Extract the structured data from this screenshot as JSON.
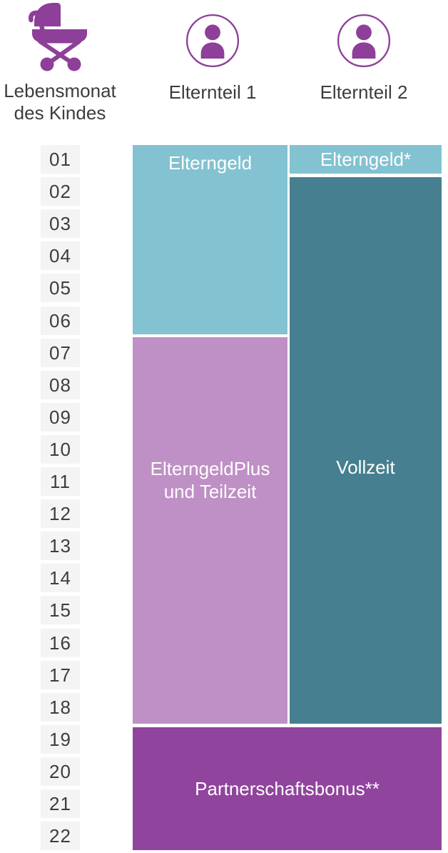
{
  "header": {
    "months_label_line1": "Lebensmonat",
    "months_label_line2": "des Kindes",
    "parent1_label": "Elternteil 1",
    "parent2_label": "Elternteil 2"
  },
  "icons": {
    "axis_icon": "baby-carriage-icon",
    "parent_icon": "person-icon"
  },
  "months": [
    "01",
    "02",
    "03",
    "04",
    "05",
    "06",
    "07",
    "08",
    "09",
    "10",
    "11",
    "12",
    "13",
    "14",
    "15",
    "16",
    "17",
    "18",
    "19",
    "20",
    "21",
    "22"
  ],
  "blocks": [
    {
      "id": "elterngeld-parent1",
      "label": "Elterngeld",
      "color_key": "light_teal"
    },
    {
      "id": "elterngeld-parent2",
      "label": "Elterngeld*",
      "color_key": "light_teal"
    },
    {
      "id": "vollzeit-parent2",
      "label": "Vollzeit",
      "color_key": "dark_teal"
    },
    {
      "id": "elterngeldplus-parent1",
      "label": "ElterngeldPlus und Teilzeit",
      "label_lines": [
        "ElterngeldPlus",
        "und Teilzeit"
      ],
      "color_key": "mauve"
    },
    {
      "id": "partnerschaftsbonus-both",
      "label": "Partnerschaftsbonus**",
      "color_key": "purple"
    }
  ],
  "colors": {
    "icon_purple": "#8e3f99",
    "light_teal": "#82c2d1",
    "dark_teal": "#467f8f",
    "mauve": "#bf90c5",
    "purple": "#90449d",
    "month_cell_bg": "#f4f4f4",
    "text_dark": "#3d3d3d",
    "block_text": "#ffffff"
  },
  "chart_data": {
    "type": "table",
    "title": "",
    "x_axis_label": "Lebensmonat des Kindes",
    "x_range": [
      1,
      22
    ],
    "columns": [
      "Elternteil 1",
      "Elternteil 2"
    ],
    "spans": [
      {
        "column": "Elternteil 1",
        "label": "Elterngeld",
        "start_month": 1,
        "end_month": 6
      },
      {
        "column": "Elternteil 1",
        "label": "ElterngeldPlus und Teilzeit",
        "start_month": 7,
        "end_month": 18
      },
      {
        "column": "Elternteil 2",
        "label": "Elterngeld*",
        "start_month": 1,
        "end_month": 1
      },
      {
        "column": "Elternteil 2",
        "label": "Vollzeit",
        "start_month": 2,
        "end_month": 18
      },
      {
        "column": "Elternteil 1 + Elternteil 2",
        "label": "Partnerschaftsbonus**",
        "start_month": 19,
        "end_month": 22
      }
    ]
  }
}
